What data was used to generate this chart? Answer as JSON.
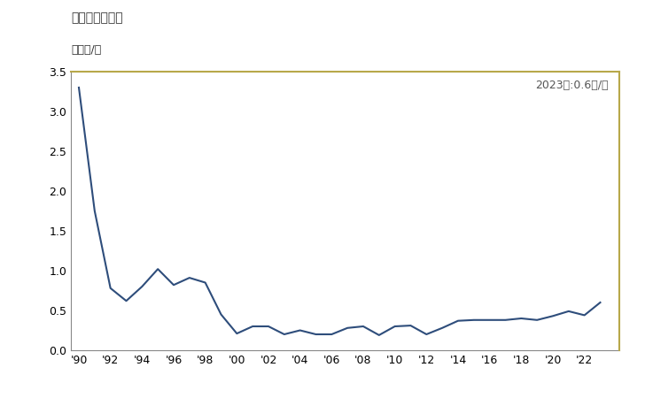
{
  "title": "輸入価格の推移",
  "ylabel": "単位円/本",
  "annotation": "2023年:0.6円/本",
  "line_color": "#2e4d7b",
  "top_line_color": "#b8a84a",
  "right_line_color": "#b8a84a",
  "background_color": "#ffffff",
  "years": [
    1990,
    1991,
    1992,
    1993,
    1994,
    1995,
    1996,
    1997,
    1998,
    1999,
    2000,
    2001,
    2002,
    2003,
    2004,
    2005,
    2006,
    2007,
    2008,
    2009,
    2010,
    2011,
    2012,
    2013,
    2014,
    2015,
    2016,
    2017,
    2018,
    2019,
    2020,
    2021,
    2022,
    2023
  ],
  "values": [
    3.3,
    1.75,
    0.78,
    0.62,
    0.8,
    1.02,
    0.82,
    0.91,
    0.85,
    0.45,
    0.21,
    0.3,
    0.3,
    0.2,
    0.25,
    0.2,
    0.2,
    0.28,
    0.3,
    0.19,
    0.3,
    0.31,
    0.2,
    0.28,
    0.37,
    0.38,
    0.38,
    0.38,
    0.4,
    0.38,
    0.43,
    0.49,
    0.44,
    0.6
  ],
  "ylim": [
    0.0,
    3.5
  ],
  "yticks": [
    0.0,
    0.5,
    1.0,
    1.5,
    2.0,
    2.5,
    3.0,
    3.5
  ],
  "xlim_start": 1989.5,
  "xlim_end": 2024.2,
  "xtick_years": [
    1990,
    1992,
    1994,
    1996,
    1998,
    2000,
    2002,
    2004,
    2006,
    2008,
    2010,
    2012,
    2014,
    2016,
    2018,
    2020,
    2022
  ],
  "xtick_labels": [
    "'90",
    "'92",
    "'94",
    "'96",
    "'98",
    "'00",
    "'02",
    "'04",
    "'06",
    "'08",
    "'10",
    "'12",
    "'14",
    "'16",
    "'18",
    "'20",
    "'22"
  ],
  "title_fontsize": 10,
  "label_fontsize": 9,
  "tick_fontsize": 9,
  "annotation_fontsize": 9
}
